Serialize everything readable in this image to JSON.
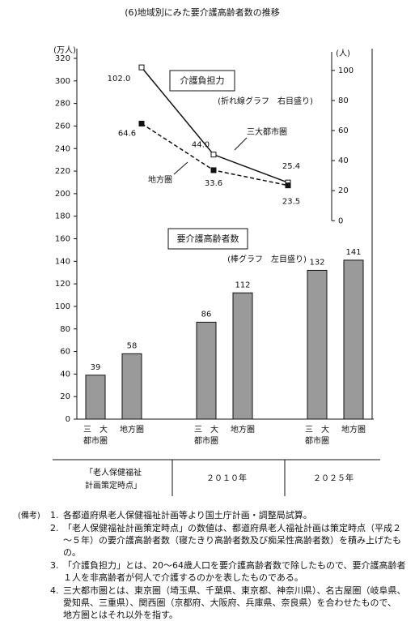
{
  "chart_data": {
    "type": "combo",
    "title": "(6)地域別にみた要介護高齢者数の推移",
    "y_label": "(万人)",
    "y2_label": "(人)",
    "groups": [
      [
        "「老人保健福祉",
        "計画策定時点」"
      ],
      [
        "２０１０年"
      ],
      [
        "２０２５年"
      ]
    ],
    "ylim": [
      0,
      320
    ],
    "yticks": [
      0,
      20,
      40,
      60,
      80,
      100,
      120,
      140,
      160,
      180,
      200,
      220,
      240,
      260,
      280,
      300,
      320
    ],
    "y2lim": [
      -132,
      108
    ],
    "y2ticks": [
      0,
      20,
      40,
      60,
      80,
      100
    ],
    "series": [
      {
        "type": "bar",
        "name": [
          "三　大",
          "都市圏"
        ],
        "color": "#9a9a9a",
        "values": [
          39,
          86,
          132
        ]
      },
      {
        "type": "bar",
        "name": [
          "地方圏"
        ],
        "color": "#9a9a9a",
        "values": [
          58,
          112,
          141
        ]
      },
      {
        "type": "line",
        "axis": "y2",
        "name": "三大都市圏",
        "color": "#111111",
        "dash": false,
        "values": [
          102.0,
          44.0,
          25.4
        ],
        "value_labels": [
          "102.0",
          "44.0",
          "25.4"
        ]
      },
      {
        "type": "line",
        "axis": "y2",
        "name": "地方圏",
        "color": "#111111",
        "dash": true,
        "values": [
          64.6,
          33.6,
          23.5
        ],
        "value_labels": [
          "64.6",
          "33.6",
          "23.5"
        ]
      }
    ],
    "annotations": [
      "介護負担力",
      "(折れ線グラフ　右目盛り)",
      "要介護高齢者数",
      "(棒グラフ　左目盛り)"
    ]
  },
  "notes": {
    "heading": "(備考)",
    "items": [
      {
        "number": "1.",
        "lines": [
          "各都道府県老人保健福祉計画等より国土庁計画・調整局試算。"
        ]
      },
      {
        "number": "2.",
        "lines": [
          "「老人保健福祉計画策定時点」の数値は、都道府県老人福祉計画は策定時点（平成２",
          "～５年）の要介護高齢者数（寝たきり高齢者数及び痴呆性高齢者数）を積み上げたも",
          "の。"
        ]
      },
      {
        "number": "3.",
        "lines": [
          "「介護負担力」とは、20～64歳人口を要介護高齢者数で除したもので、要介護高齢者",
          "１人を非高齢者が何人で介護するのかを表したものである。"
        ]
      },
      {
        "number": "4.",
        "lines": [
          "三大都市圏とは、東京圏（埼玉県、千葉県、東京都、神奈川県）、名古屋圏（岐阜県、",
          "愛知県、三重県）、関西圏（京都府、大阪府、兵庫県、奈良県）を合わせたもので、",
          "地方圏とはそれ以外を指す。"
        ]
      }
    ]
  }
}
